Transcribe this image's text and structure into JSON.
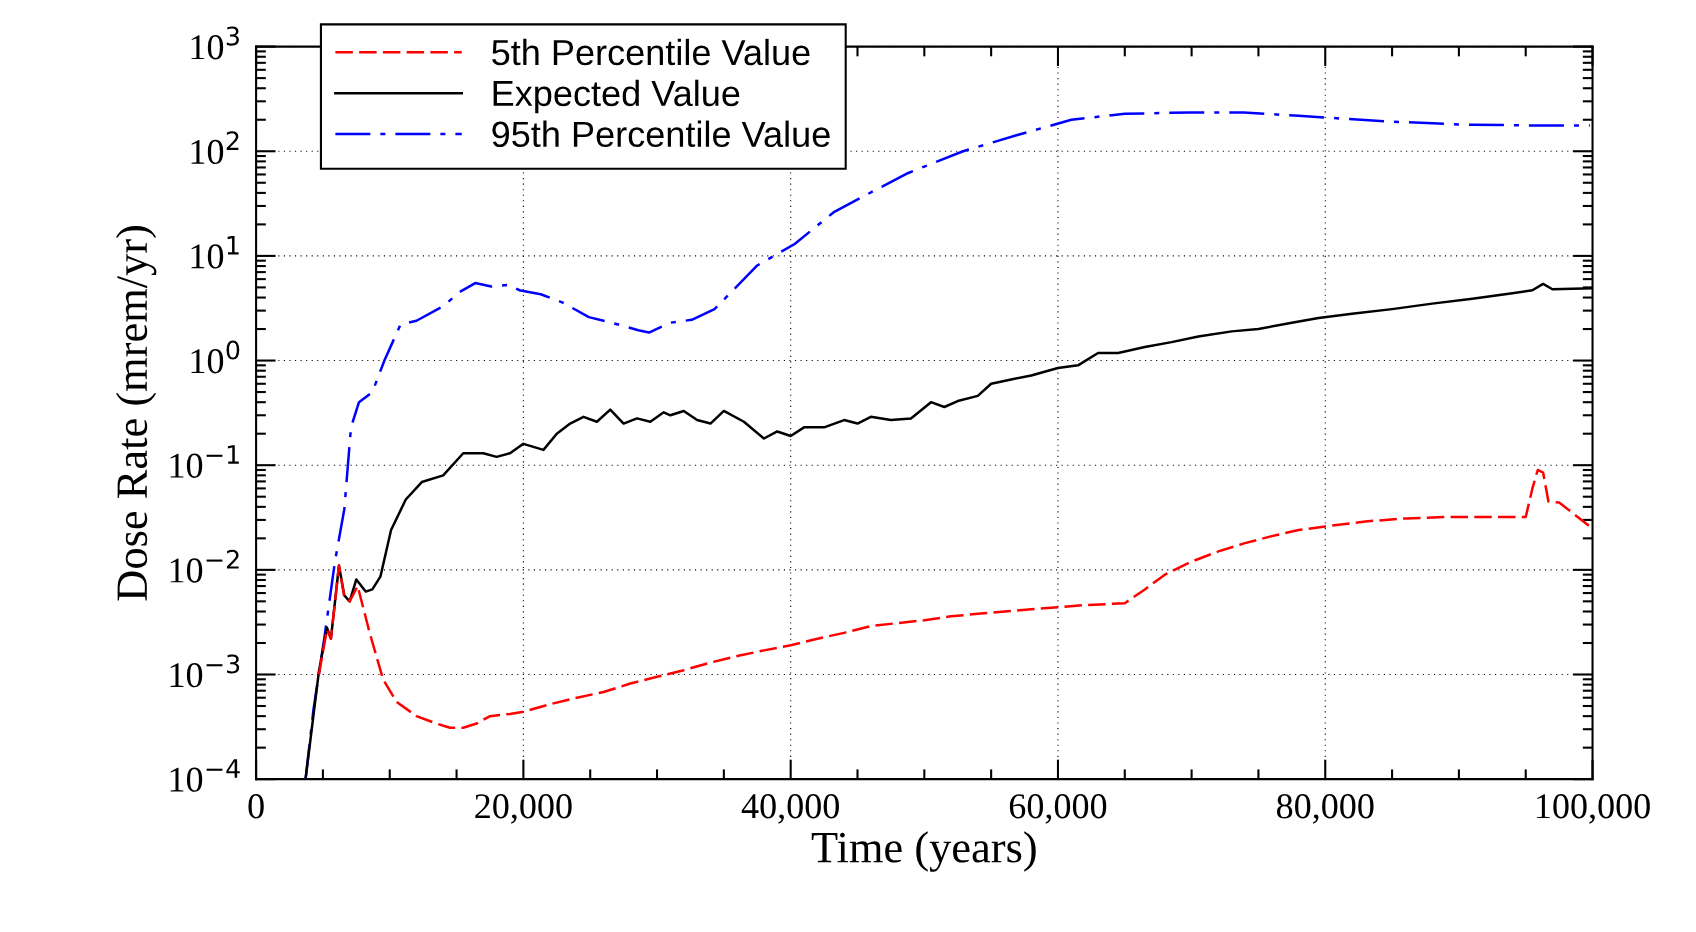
{
  "chart_data": {
    "type": "line",
    "xlabel": "Time (years)",
    "ylabel": "Dose Rate (mrem/yr)",
    "log": "y",
    "grid": true,
    "legend": "top left",
    "xlim": [
      0,
      100000
    ],
    "ylim": [
      0.0001,
      1000
    ],
    "xticks": [
      0,
      {
        "value": 20000,
        "label": "20,000"
      },
      {
        "value": 40000,
        "label": "40,000"
      },
      {
        "value": 60000,
        "label": "60,000"
      },
      {
        "value": 80000,
        "label": "80,000"
      },
      {
        "value": 100000,
        "label": "100,000"
      }
    ],
    "yticks": [
      {
        "value": 0.0001,
        "label": "10$^{−4}$"
      },
      {
        "value": 0.001,
        "label": "10$^{−3}$"
      },
      {
        "value": 0.01,
        "label": "10$^{−2}$"
      },
      {
        "value": 0.1,
        "label": "10$^{−1}$"
      },
      {
        "value": 1,
        "label": "10$^{0}$"
      },
      {
        "value": 10,
        "label": "10$^{1}$"
      },
      {
        "value": 100,
        "label": "10$^{2}$"
      },
      {
        "value": 1000,
        "label": "10$^{3}$"
      }
    ],
    "series": [
      {
        "name": "5th Percentile Value",
        "color": "#ff0000",
        "line_style": "dashed",
        "x": [
          4700,
          5300,
          5600,
          6200,
          6600,
          7000,
          7600,
          8500,
          9500,
          10500,
          12000,
          13500,
          14500,
          15500,
          16500,
          17500,
          19000,
          20000,
          22000,
          24000,
          26000,
          28000,
          30000,
          32000,
          34000,
          36000,
          38000,
          40000,
          42000,
          44000,
          46000,
          48000,
          50000,
          52000,
          54000,
          56000,
          58000,
          60000,
          62000,
          65000,
          66500,
          68000,
          70000,
          72000,
          74000,
          76000,
          78000,
          80000,
          83000,
          86000,
          89000,
          92000,
          95000,
          95500,
          95900,
          96300,
          96700,
          97500,
          98500,
          99800
        ],
        "values": [
          0.001,
          0.0027,
          0.0022,
          0.011,
          0.0055,
          0.005,
          0.007,
          0.0025,
          0.0009,
          0.00055,
          0.0004,
          0.00034,
          0.00031,
          0.00031,
          0.00034,
          0.0004,
          0.00042,
          0.00044,
          0.00052,
          0.0006,
          0.00068,
          0.00082,
          0.00095,
          0.0011,
          0.0013,
          0.0015,
          0.0017,
          0.0019,
          0.0022,
          0.0025,
          0.0029,
          0.0031,
          0.0033,
          0.0036,
          0.0038,
          0.004,
          0.0042,
          0.0044,
          0.0046,
          0.0048,
          0.0065,
          0.009,
          0.012,
          0.015,
          0.018,
          0.021,
          0.024,
          0.026,
          0.029,
          0.031,
          0.032,
          0.032,
          0.032,
          0.06,
          0.09,
          0.085,
          0.045,
          0.044,
          0.035,
          0.026
        ]
      },
      {
        "name": "Expected Value",
        "color": "#000000",
        "line_style": "solid",
        "x": [
          3700,
          4700,
          5300,
          5600,
          6200,
          6600,
          7000,
          7500,
          8200,
          8700,
          9300,
          10100,
          11200,
          12400,
          14000,
          15500,
          17000,
          18000,
          19000,
          20000,
          21500,
          22500,
          23500,
          24500,
          25500,
          26500,
          27500,
          28500,
          29500,
          30500,
          31000,
          32000,
          33000,
          34000,
          35000,
          36500,
          38000,
          39000,
          40000,
          41000,
          42500,
          44000,
          45000,
          46000,
          47500,
          49000,
          50500,
          51500,
          52500,
          54000,
          55000,
          56500,
          58000,
          60000,
          61500,
          63000,
          64500,
          66500,
          68500,
          70500,
          73000,
          75000,
          77500,
          79500,
          82000,
          85000,
          88000,
          91000,
          94000,
          95500,
          96300,
          97000,
          100000
        ],
        "values": [
          0.0001,
          0.00107,
          0.0028,
          0.0022,
          0.011,
          0.0057,
          0.005,
          0.0081,
          0.0062,
          0.0065,
          0.0086,
          0.024,
          0.047,
          0.069,
          0.08,
          0.13,
          0.13,
          0.12,
          0.13,
          0.16,
          0.14,
          0.2,
          0.25,
          0.29,
          0.26,
          0.34,
          0.25,
          0.28,
          0.26,
          0.32,
          0.3,
          0.33,
          0.27,
          0.25,
          0.33,
          0.26,
          0.18,
          0.21,
          0.19,
          0.23,
          0.23,
          0.27,
          0.25,
          0.29,
          0.27,
          0.28,
          0.4,
          0.36,
          0.41,
          0.46,
          0.6,
          0.66,
          0.72,
          0.85,
          0.9,
          1.18,
          1.18,
          1.35,
          1.5,
          1.7,
          1.9,
          2.0,
          2.3,
          2.55,
          2.8,
          3.1,
          3.5,
          3.9,
          4.4,
          4.7,
          5.4,
          4.8,
          4.9
        ]
      },
      {
        "name": "95th Percentile Value",
        "color": "#0000ff",
        "line_style": "dashdot",
        "x": [
          3700,
          4300,
          5100,
          5900,
          6600,
          7100,
          7700,
          8700,
          9600,
          10800,
          12000,
          14000,
          15200,
          16400,
          17600,
          18900,
          19700,
          21300,
          22900,
          24900,
          26600,
          28600,
          29400,
          31000,
          32600,
          34300,
          35900,
          37500,
          40300,
          43200,
          45600,
          48800,
          52900,
          56900,
          61000,
          65000,
          69900,
          73900,
          78000,
          84500,
          90100,
          95800,
          99800
        ],
        "values": [
          0.0001,
          0.00047,
          0.0022,
          0.012,
          0.038,
          0.23,
          0.4,
          0.5,
          1.0,
          2.2,
          2.4,
          3.3,
          4.5,
          5.5,
          5.1,
          5.3,
          4.7,
          4.3,
          3.6,
          2.6,
          2.3,
          1.95,
          1.85,
          2.3,
          2.45,
          3.1,
          5.0,
          8.1,
          13,
          26,
          38,
          62,
          100,
          142,
          200,
          228,
          235,
          235,
          218,
          193,
          180,
          176,
          176
        ]
      }
    ]
  }
}
